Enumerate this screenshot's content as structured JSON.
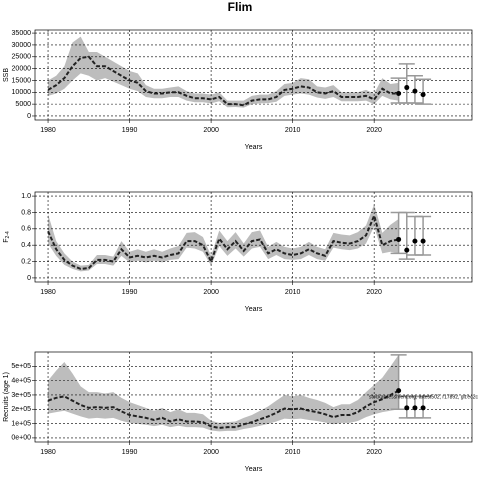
{
  "chart_data": [
    {
      "type": "line",
      "title": "Flim",
      "ylabel": "SSB",
      "xlabel": "Years",
      "x": [
        1980,
        1981,
        1982,
        1983,
        1984,
        1985,
        1986,
        1987,
        1988,
        1989,
        1990,
        1991,
        1992,
        1993,
        1994,
        1995,
        1996,
        1997,
        1998,
        1999,
        2000,
        2001,
        2002,
        2003,
        2004,
        2005,
        2006,
        2007,
        2008,
        2009,
        2010,
        2011,
        2012,
        2013,
        2014,
        2015,
        2016,
        2017,
        2018,
        2019,
        2020,
        2021,
        2022,
        2023
      ],
      "values": [
        11000,
        13000,
        16000,
        21000,
        24500,
        25000,
        21000,
        21000,
        19000,
        17000,
        15000,
        14000,
        10500,
        9500,
        9500,
        10000,
        10000,
        8500,
        7500,
        7500,
        7000,
        8000,
        5000,
        5000,
        4500,
        6500,
        7000,
        7000,
        8000,
        11000,
        11500,
        12500,
        12000,
        10000,
        9500,
        10500,
        8000,
        8000,
        8000,
        8500,
        7000,
        11500,
        9500,
        9500
      ],
      "upper": [
        15000,
        17000,
        21000,
        31000,
        33500,
        27000,
        27000,
        25000,
        23000,
        21000,
        19000,
        18000,
        13000,
        11500,
        11500,
        12000,
        12500,
        10500,
        9500,
        9500,
        9000,
        10000,
        6500,
        6500,
        6500,
        8500,
        9000,
        9000,
        10500,
        13500,
        14000,
        16000,
        15500,
        12500,
        12000,
        13000,
        10000,
        10000,
        10000,
        11000,
        9500,
        16000,
        13500,
        14000
      ],
      "lower": [
        8500,
        9500,
        11500,
        15000,
        18000,
        17000,
        15000,
        16000,
        14500,
        13000,
        11500,
        10500,
        8000,
        7500,
        7500,
        8000,
        8000,
        6500,
        5800,
        5800,
        5300,
        6200,
        3700,
        3800,
        3500,
        5000,
        5300,
        5400,
        6000,
        8500,
        9000,
        9500,
        9000,
        7800,
        7200,
        8000,
        6200,
        6200,
        6200,
        6500,
        5000,
        8500,
        7000,
        6500
      ],
      "forecast": {
        "x": [
          2023,
          2024,
          2025,
          2026
        ],
        "values": [
          9500,
          12000,
          10500,
          9000
        ],
        "lower": [
          5500,
          5500,
          5500,
          5000
        ],
        "upper": [
          16000,
          22000,
          17000,
          15500
        ]
      },
      "color": "#222222",
      "band_color": "#bdbdbd",
      "forecast_color": "#999999",
      "xlim": [
        1978.4,
        2032
      ],
      "xticks": [
        1980,
        1990,
        2000,
        2010,
        2020
      ],
      "ylim": [
        -1700,
        36300
      ],
      "yticks": [
        0,
        5000,
        10000,
        15000,
        20000,
        25000,
        30000,
        35000
      ],
      "grid": true
    },
    {
      "type": "line",
      "ylabel": "F",
      "ylabel_subscript": "2-4",
      "xlabel": "Years",
      "x": [
        1980,
        1981,
        1982,
        1983,
        1984,
        1985,
        1986,
        1987,
        1988,
        1989,
        1990,
        1991,
        1992,
        1993,
        1994,
        1995,
        1996,
        1997,
        1998,
        1999,
        2000,
        2001,
        2002,
        2003,
        2004,
        2005,
        2006,
        2007,
        2008,
        2009,
        2010,
        2011,
        2012,
        2013,
        2014,
        2015,
        2016,
        2017,
        2018,
        2019,
        2020,
        2021,
        2022,
        2023
      ],
      "values": [
        0.57,
        0.35,
        0.22,
        0.15,
        0.11,
        0.12,
        0.22,
        0.22,
        0.2,
        0.35,
        0.25,
        0.27,
        0.25,
        0.27,
        0.25,
        0.28,
        0.3,
        0.45,
        0.45,
        0.4,
        0.2,
        0.48,
        0.35,
        0.45,
        0.33,
        0.45,
        0.47,
        0.3,
        0.35,
        0.3,
        0.28,
        0.3,
        0.35,
        0.3,
        0.27,
        0.45,
        0.43,
        0.42,
        0.45,
        0.52,
        0.76,
        0.4,
        0.45,
        0.47
      ],
      "upper": [
        0.78,
        0.45,
        0.3,
        0.2,
        0.15,
        0.16,
        0.28,
        0.28,
        0.26,
        0.45,
        0.32,
        0.35,
        0.32,
        0.35,
        0.32,
        0.36,
        0.39,
        0.55,
        0.56,
        0.5,
        0.27,
        0.58,
        0.45,
        0.56,
        0.42,
        0.56,
        0.58,
        0.38,
        0.44,
        0.38,
        0.36,
        0.38,
        0.44,
        0.38,
        0.35,
        0.55,
        0.53,
        0.52,
        0.56,
        0.64,
        0.9,
        0.55,
        0.65,
        0.72
      ],
      "lower": [
        0.42,
        0.27,
        0.16,
        0.11,
        0.08,
        0.09,
        0.17,
        0.17,
        0.15,
        0.27,
        0.19,
        0.21,
        0.19,
        0.21,
        0.19,
        0.22,
        0.23,
        0.37,
        0.36,
        0.32,
        0.15,
        0.39,
        0.27,
        0.36,
        0.26,
        0.36,
        0.38,
        0.23,
        0.28,
        0.23,
        0.22,
        0.23,
        0.28,
        0.23,
        0.21,
        0.37,
        0.35,
        0.34,
        0.36,
        0.42,
        0.63,
        0.3,
        0.32,
        0.3
      ],
      "forecast": {
        "x": [
          2023,
          2024,
          2025,
          2026
        ],
        "values": [
          0.47,
          0.34,
          0.45,
          0.45
        ],
        "lower": [
          0.3,
          0.23,
          0.28,
          0.28
        ],
        "upper": [
          0.8,
          0.8,
          0.75,
          0.75
        ]
      },
      "color": "#222222",
      "band_color": "#bdbdbd",
      "forecast_color": "#999999",
      "xlim": [
        1978.4,
        2032
      ],
      "xticks": [
        1980,
        1990,
        2000,
        2010,
        2020
      ],
      "ylim": [
        -0.05,
        1.05
      ],
      "yticks": [
        0,
        0.2,
        0.4,
        0.6,
        0.8,
        {
          "value": 1,
          "label": "1.0"
        }
      ],
      "grid": true
    },
    {
      "type": "line",
      "ylabel": "Recruits (age 1)",
      "xlabel": "Years",
      "annotation": "stockassessment.org, artest502, r17892, git:ec2c",
      "x": [
        1980,
        1981,
        1982,
        1983,
        1984,
        1985,
        1986,
        1987,
        1988,
        1989,
        1990,
        1991,
        1992,
        1993,
        1994,
        1995,
        1996,
        1997,
        1998,
        1999,
        2000,
        2001,
        2002,
        2003,
        2004,
        2005,
        2006,
        2007,
        2008,
        2009,
        2010,
        2011,
        2012,
        2013,
        2014,
        2015,
        2016,
        2017,
        2018,
        2019,
        2020,
        2021,
        2022,
        2023
      ],
      "values": [
        260000,
        280000,
        290000,
        260000,
        230000,
        210000,
        215000,
        210000,
        215000,
        185000,
        160000,
        150000,
        140000,
        125000,
        140000,
        115000,
        130000,
        115000,
        115000,
        110000,
        80000,
        70000,
        75000,
        75000,
        95000,
        110000,
        130000,
        150000,
        175000,
        205000,
        200000,
        205000,
        190000,
        180000,
        165000,
        145000,
        160000,
        160000,
        180000,
        220000,
        250000,
        270000,
        300000,
        330000
      ],
      "upper": [
        400000,
        470000,
        530000,
        450000,
        360000,
        320000,
        320000,
        310000,
        320000,
        280000,
        250000,
        230000,
        210000,
        190000,
        210000,
        180000,
        200000,
        175000,
        175000,
        165000,
        120000,
        105000,
        110000,
        115000,
        140000,
        160000,
        190000,
        220000,
        260000,
        300000,
        290000,
        300000,
        280000,
        265000,
        245000,
        215000,
        235000,
        235000,
        265000,
        320000,
        370000,
        420000,
        500000,
        580000
      ],
      "lower": [
        170000,
        180000,
        190000,
        170000,
        150000,
        135000,
        140000,
        135000,
        140000,
        120000,
        105000,
        98000,
        92000,
        82000,
        92000,
        75000,
        85000,
        75000,
        75000,
        72000,
        52000,
        46000,
        49000,
        49000,
        62000,
        72000,
        85000,
        98000,
        115000,
        135000,
        130000,
        135000,
        125000,
        118000,
        108000,
        95000,
        105000,
        105000,
        118000,
        145000,
        165000,
        180000,
        190000,
        200000
      ],
      "forecast": {
        "x": [
          2023,
          2024,
          2025,
          2026
        ],
        "values": [
          330000,
          210000,
          210000,
          210000
        ],
        "lower": [
          200000,
          140000,
          140000,
          140000
        ],
        "upper": [
          580000,
          290000,
          290000,
          290000
        ]
      },
      "color": "#222222",
      "band_color": "#bdbdbd",
      "forecast_color": "#999999",
      "xlim": [
        1978.4,
        2032
      ],
      "xticks": [
        1980,
        1990,
        2000,
        2010,
        2020
      ],
      "ylim": [
        -28600,
        600000
      ],
      "yticks": [
        {
          "value": 0,
          "label": "0e+00"
        },
        {
          "value": 100000,
          "label": "1e+05"
        },
        {
          "value": 200000,
          "label": "2e+05"
        },
        {
          "value": 300000,
          "label": "3e+05"
        },
        {
          "value": 400000,
          "label": "4e+05"
        },
        {
          "value": 500000,
          "label": "5e+05"
        }
      ],
      "grid": true
    }
  ]
}
